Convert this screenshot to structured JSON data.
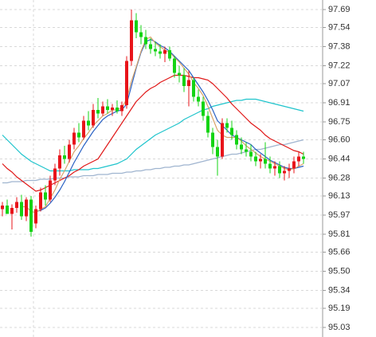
{
  "chart_data": {
    "type": "candlestick",
    "categories": [
      null,
      null,
      null,
      null,
      null,
      null,
      null,
      null,
      null,
      null,
      null,
      null,
      null,
      null,
      null,
      null,
      null,
      null,
      null,
      null,
      null,
      null,
      null,
      null,
      null,
      null,
      null,
      null,
      null,
      null,
      null,
      null,
      null,
      null,
      null,
      null,
      null,
      null,
      null,
      null,
      null,
      null,
      null,
      null,
      null,
      null,
      null,
      null,
      null,
      null,
      null,
      null,
      null,
      null,
      null,
      null,
      null,
      null,
      null,
      null,
      null,
      null,
      null,
      null
    ],
    "open": [
      96.02,
      96.05,
      95.98,
      96.03,
      96.08,
      95.96,
      96.1,
      95.9,
      96.02,
      96.16,
      96.1,
      96.26,
      96.36,
      96.47,
      96.44,
      96.56,
      96.66,
      96.62,
      96.76,
      96.72,
      96.85,
      96.82,
      96.88,
      96.85,
      96.87,
      96.84,
      96.89,
      97.26,
      97.6,
      97.5,
      97.46,
      97.4,
      97.36,
      97.34,
      97.32,
      97.35,
      97.28,
      97.16,
      97.14,
      97.05,
      97.1,
      96.96,
      96.92,
      96.8,
      96.66,
      96.54,
      96.46,
      96.74,
      96.7,
      96.64,
      96.56,
      96.52,
      96.5,
      96.46,
      96.42,
      96.44,
      96.4,
      96.36,
      96.38,
      96.32,
      96.34,
      96.36,
      96.42,
      96.46
    ],
    "high": [
      96.08,
      96.1,
      96.06,
      96.12,
      96.14,
      96.12,
      96.13,
      96.05,
      96.2,
      96.22,
      96.3,
      96.4,
      96.52,
      96.55,
      96.6,
      96.7,
      96.74,
      96.8,
      96.84,
      96.9,
      96.95,
      96.92,
      96.94,
      96.9,
      96.93,
      96.92,
      97.3,
      97.69,
      97.66,
      97.56,
      97.52,
      97.45,
      97.42,
      97.4,
      97.38,
      97.38,
      97.3,
      97.22,
      97.2,
      97.18,
      97.12,
      97.02,
      96.96,
      96.84,
      96.7,
      96.6,
      96.78,
      96.78,
      96.76,
      96.68,
      96.62,
      96.58,
      96.56,
      96.5,
      96.48,
      96.58,
      96.46,
      96.42,
      96.42,
      96.38,
      96.4,
      96.46,
      96.5,
      96.5
    ],
    "low": [
      95.96,
      96.0,
      95.85,
      95.99,
      95.93,
      95.92,
      95.79,
      95.86,
      96.0,
      96.05,
      96.08,
      96.22,
      96.3,
      96.4,
      96.41,
      96.52,
      96.58,
      96.6,
      96.68,
      96.7,
      96.78,
      96.8,
      96.82,
      96.8,
      96.82,
      96.8,
      96.86,
      97.22,
      97.45,
      97.4,
      97.36,
      97.32,
      97.3,
      97.28,
      97.25,
      97.26,
      97.12,
      97.08,
      97.0,
      96.88,
      96.92,
      96.88,
      96.76,
      96.62,
      96.48,
      96.3,
      96.44,
      96.66,
      96.6,
      96.52,
      96.48,
      96.46,
      96.42,
      96.38,
      96.36,
      96.36,
      96.32,
      96.3,
      96.28,
      96.26,
      96.28,
      96.32,
      96.38,
      96.4
    ],
    "close": [
      96.05,
      95.98,
      96.03,
      96.08,
      95.96,
      96.1,
      95.83,
      96.02,
      96.16,
      96.1,
      96.26,
      96.36,
      96.47,
      96.44,
      96.56,
      96.66,
      96.62,
      96.76,
      96.72,
      96.85,
      96.82,
      96.88,
      96.85,
      96.87,
      96.84,
      96.89,
      97.26,
      97.6,
      97.5,
      97.46,
      97.4,
      97.36,
      97.34,
      97.32,
      97.35,
      97.28,
      97.16,
      97.14,
      97.05,
      97.1,
      96.96,
      96.92,
      96.8,
      96.66,
      96.54,
      96.46,
      96.74,
      96.7,
      96.64,
      96.56,
      96.52,
      96.5,
      96.46,
      96.42,
      96.44,
      96.4,
      96.36,
      96.38,
      96.32,
      96.34,
      96.36,
      96.42,
      96.46,
      96.44
    ],
    "up_color": "#e8141a",
    "down_color": "#14d414",
    "lines": [
      {
        "color": "#9fb4cf",
        "values": [
          96.24,
          96.24,
          96.25,
          96.25,
          96.25,
          96.26,
          96.26,
          96.26,
          96.27,
          96.27,
          96.27,
          96.28,
          96.28,
          96.28,
          96.29,
          96.29,
          96.29,
          96.3,
          96.3,
          96.3,
          96.31,
          96.31,
          96.31,
          96.32,
          96.32,
          96.32,
          96.33,
          96.33,
          96.34,
          96.34,
          96.35,
          96.35,
          96.36,
          96.36,
          96.37,
          96.37,
          96.38,
          96.38,
          96.39,
          96.39,
          96.4,
          96.41,
          96.42,
          96.43,
          96.44,
          96.45,
          96.46,
          96.47,
          96.48,
          96.48,
          96.49,
          96.5,
          96.51,
          96.52,
          96.52,
          96.53,
          96.54,
          96.55,
          96.56,
          96.56,
          96.57,
          96.58,
          96.59,
          96.6
        ]
      },
      {
        "color": "#1fc4cc",
        "values": [
          96.64,
          96.6,
          96.56,
          96.52,
          96.48,
          96.45,
          96.42,
          96.4,
          96.38,
          96.36,
          96.34,
          96.34,
          96.34,
          96.34,
          96.34,
          96.35,
          96.35,
          96.35,
          96.35,
          96.36,
          96.36,
          96.37,
          96.38,
          96.39,
          96.4,
          96.42,
          96.44,
          96.48,
          96.52,
          96.55,
          96.58,
          96.61,
          96.64,
          96.66,
          96.68,
          96.7,
          96.72,
          96.74,
          96.77,
          96.79,
          96.81,
          96.83,
          96.85,
          96.86,
          96.88,
          96.89,
          96.9,
          96.91,
          96.92,
          96.93,
          96.93,
          96.94,
          96.94,
          96.94,
          96.93,
          96.92,
          96.91,
          96.9,
          96.89,
          96.88,
          96.87,
          96.86,
          96.85,
          96.84
        ]
      },
      {
        "color": "#e01818",
        "values": [
          96.4,
          96.36,
          96.33,
          96.29,
          96.26,
          96.23,
          96.2,
          96.17,
          96.18,
          96.2,
          96.22,
          96.24,
          96.26,
          96.28,
          96.3,
          96.33,
          96.35,
          96.38,
          96.4,
          96.42,
          96.44,
          96.5,
          96.56,
          96.62,
          96.68,
          96.74,
          96.8,
          96.86,
          96.92,
          96.96,
          97.0,
          97.03,
          97.05,
          97.08,
          97.1,
          97.12,
          97.14,
          97.14,
          97.14,
          97.13,
          97.12,
          97.12,
          97.11,
          97.1,
          97.07,
          97.03,
          96.99,
          96.95,
          96.9,
          96.86,
          96.82,
          96.78,
          96.74,
          96.71,
          96.68,
          96.64,
          96.61,
          96.59,
          96.57,
          96.55,
          96.53,
          96.51,
          96.5,
          96.48
        ]
      },
      {
        "color": "#2a62c4",
        "values": [
          null,
          null,
          null,
          null,
          null,
          null,
          null,
          96.0,
          96.01,
          96.03,
          96.07,
          96.12,
          96.18,
          96.25,
          96.33,
          96.41,
          96.48,
          96.55,
          96.61,
          96.67,
          96.72,
          96.77,
          96.8,
          96.82,
          96.84,
          96.85,
          96.9,
          97.05,
          97.2,
          97.33,
          97.42,
          97.44,
          97.42,
          97.39,
          97.37,
          97.34,
          97.3,
          97.26,
          97.22,
          97.18,
          97.12,
          97.06,
          97.0,
          96.93,
          96.85,
          96.76,
          96.72,
          96.68,
          96.64,
          96.62,
          96.6,
          96.58,
          96.56,
          96.52,
          96.49,
          96.46,
          96.43,
          96.41,
          96.39,
          96.37,
          96.36,
          96.36,
          96.37,
          96.38
        ]
      },
      {
        "color": "#d8a46a",
        "values": [
          null,
          null,
          null,
          null,
          96.04,
          96.04,
          96.0,
          95.99,
          96.02,
          96.04,
          96.11,
          96.18,
          96.27,
          96.34,
          96.42,
          96.5,
          96.55,
          96.61,
          96.66,
          96.72,
          96.76,
          96.8,
          96.82,
          96.85,
          96.85,
          96.87,
          96.94,
          97.09,
          97.21,
          97.34,
          97.44,
          97.46,
          97.41,
          97.38,
          97.35,
          97.33,
          97.29,
          97.25,
          97.2,
          97.15,
          97.08,
          97.03,
          96.97,
          96.88,
          96.78,
          96.68,
          96.64,
          96.62,
          96.62,
          96.62,
          96.59,
          96.55,
          96.52,
          96.49,
          96.46,
          96.44,
          96.42,
          96.4,
          96.38,
          96.36,
          96.35,
          96.36,
          96.38,
          96.4
        ]
      }
    ],
    "ylim": [
      94.95,
      97.77
    ],
    "yticks": [
      97.69,
      97.54,
      97.38,
      97.22,
      97.07,
      96.91,
      96.75,
      {
        "value": 96.6,
        "label": "96.60"
      },
      96.44,
      96.28,
      96.13,
      95.97,
      95.81,
      95.66,
      {
        "value": 95.5,
        "label": "95.50"
      },
      95.34,
      95.19,
      95.03
    ],
    "grid": true
  }
}
